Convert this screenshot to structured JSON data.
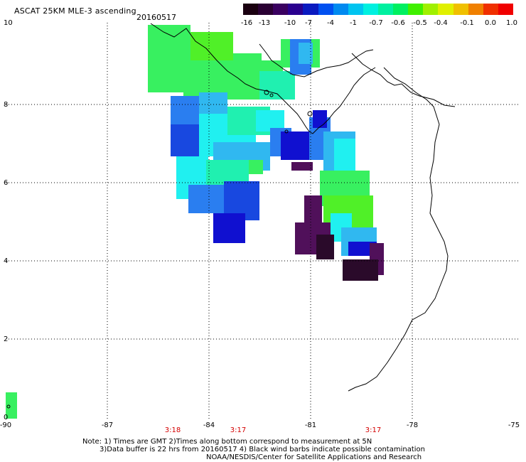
{
  "header": {
    "title": "ASCAT 25KM MLE-3 ascending",
    "date": "20160517"
  },
  "colorbar": {
    "labels": [
      "-16",
      "-13",
      "-10",
      "-7",
      "-4",
      "-1",
      "-0.7",
      "-0.6",
      "-0.5",
      "-0.4",
      "-0.1",
      "0.0",
      "1.0"
    ],
    "colors": [
      "#1a0010",
      "#2a0033",
      "#3a0060",
      "#2a008f",
      "#0a1ac0",
      "#0050f0",
      "#008af0",
      "#00c4f0",
      "#00f0e0",
      "#00f0a0",
      "#00f060",
      "#40f000",
      "#a0f000",
      "#e0f000",
      "#f0c000",
      "#f08000",
      "#f03000",
      "#f00000"
    ]
  },
  "axes": {
    "lat_labels": [
      "10",
      "8",
      "6",
      "4",
      "2",
      "0"
    ],
    "lon_labels": [
      "-90",
      "-87",
      "-84",
      "-81",
      "-78",
      "-75"
    ],
    "pass_times": [
      "3:18",
      "3:17",
      "3:17"
    ]
  },
  "notes": {
    "line1": "Note: 1) Times are GMT 2)Times along bottom correspond to measurement at 5N",
    "line2": "3)Data buffer is 22 hrs from 20160517 4) Black wind barbs indicate possible contamination",
    "line3": "NOAA/NESDIS/Center for Satellite Applications and Research"
  },
  "palette": {
    "dark_purple": "#2a0a2a",
    "purple": "#50105a",
    "deep_blue": "#1010d0",
    "blue": "#1848e0",
    "mid_blue": "#2a7ef0",
    "light_blue": "#30b8f0",
    "cyan": "#20f0f0",
    "teal": "#20f0b0",
    "green": "#38f060",
    "bright_green": "#50f028"
  }
}
